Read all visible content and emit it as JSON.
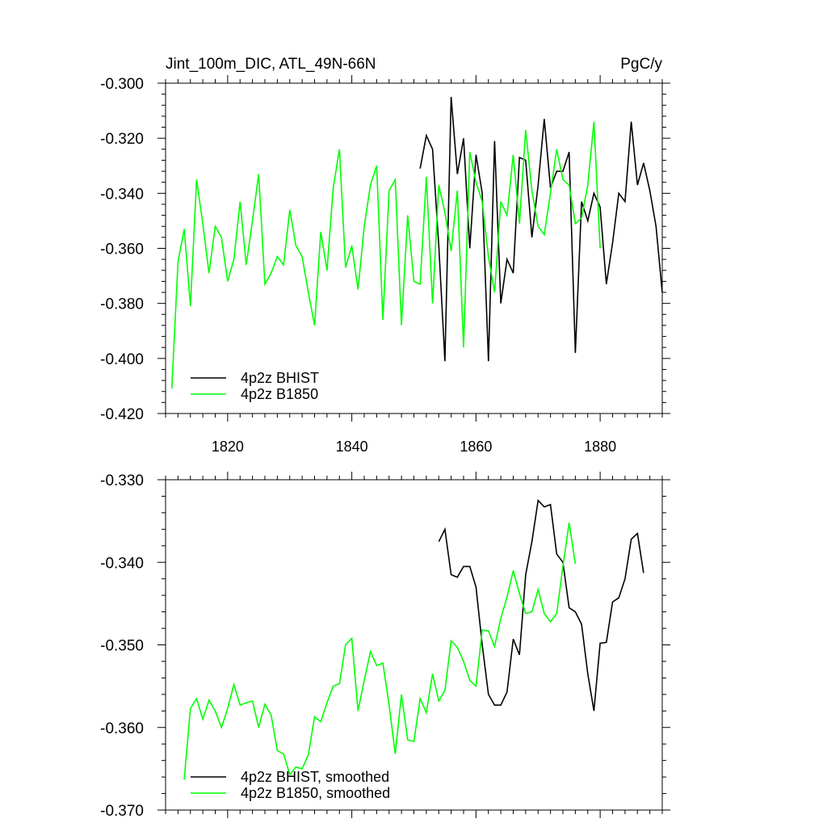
{
  "chart_data": [
    {
      "type": "line",
      "title": "Jint_100m_DIC, ATL_49N-66N",
      "units": "PgC/y",
      "xlabel": "",
      "ylabel": "",
      "xlim": [
        1810,
        1890
      ],
      "ylim": [
        -0.42,
        -0.3
      ],
      "xticks": [
        1820,
        1840,
        1860,
        1880
      ],
      "yticks": [
        -0.42,
        -0.4,
        -0.38,
        -0.36,
        -0.34,
        -0.32,
        -0.3
      ],
      "ytick_labels": [
        "-0.420",
        "-0.400",
        "-0.380",
        "-0.360",
        "-0.340",
        "-0.320",
        "-0.300"
      ],
      "legend": "bottom-left",
      "series": [
        {
          "name": "4p2z BHIST",
          "color": "#000000",
          "x0": 1851,
          "values": [
            -0.331,
            -0.319,
            -0.324,
            -0.359,
            -0.401,
            -0.305,
            -0.333,
            -0.32,
            -0.36,
            -0.326,
            -0.34,
            -0.401,
            -0.321,
            -0.38,
            -0.364,
            -0.369,
            -0.327,
            -0.328,
            -0.356,
            -0.337,
            -0.313,
            -0.338,
            -0.332,
            -0.332,
            -0.325,
            -0.398,
            -0.343,
            -0.35,
            -0.34,
            -0.345,
            -0.373,
            -0.358,
            -0.34,
            -0.343,
            -0.314,
            -0.337,
            -0.329,
            -0.339,
            -0.352,
            -0.376
          ]
        },
        {
          "name": "4p2z B1850",
          "color": "#00ff00",
          "x0": 1811,
          "values": [
            -0.411,
            -0.365,
            -0.353,
            -0.381,
            -0.335,
            -0.351,
            -0.369,
            -0.352,
            -0.356,
            -0.372,
            -0.364,
            -0.343,
            -0.366,
            -0.35,
            -0.333,
            -0.373,
            -0.369,
            -0.363,
            -0.366,
            -0.346,
            -0.359,
            -0.363,
            -0.376,
            -0.388,
            -0.354,
            -0.368,
            -0.338,
            -0.324,
            -0.367,
            -0.359,
            -0.375,
            -0.352,
            -0.337,
            -0.33,
            -0.386,
            -0.339,
            -0.335,
            -0.388,
            -0.348,
            -0.372,
            -0.373,
            -0.334,
            -0.38,
            -0.337,
            -0.347,
            -0.361,
            -0.339,
            -0.396,
            -0.325,
            -0.336,
            -0.343,
            -0.363,
            -0.376,
            -0.343,
            -0.348,
            -0.326,
            -0.351,
            -0.317,
            -0.339,
            -0.352,
            -0.355,
            -0.34,
            -0.324,
            -0.335,
            -0.337,
            -0.351,
            -0.349,
            -0.337,
            -0.314,
            -0.36
          ]
        }
      ]
    },
    {
      "type": "line",
      "title": "",
      "xlabel": "",
      "ylabel": "",
      "xlim": [
        1810,
        1890
      ],
      "ylim": [
        -0.37,
        -0.33
      ],
      "xticks": [
        1820,
        1840,
        1860,
        1880
      ],
      "yticks": [
        -0.37,
        -0.36,
        -0.35,
        -0.34,
        -0.33
      ],
      "ytick_labels": [
        "-0.370",
        "-0.360",
        "-0.350",
        "-0.340",
        "-0.330"
      ],
      "legend": "bottom-left",
      "series": [
        {
          "name": "4p2z BHIST, smoothed",
          "color": "#000000",
          "x0": 1854,
          "values": [
            -0.3375,
            -0.336,
            -0.3415,
            -0.3418,
            -0.3405,
            -0.3405,
            -0.343,
            -0.35,
            -0.356,
            -0.3573,
            -0.3573,
            -0.3557,
            -0.3493,
            -0.3512,
            -0.3415,
            -0.3375,
            -0.3325,
            -0.3333,
            -0.333,
            -0.339,
            -0.34,
            -0.3455,
            -0.346,
            -0.3475,
            -0.3535,
            -0.358,
            -0.3498,
            -0.3497,
            -0.3448,
            -0.3443,
            -0.342,
            -0.3372,
            -0.3365,
            -0.3413
          ]
        },
        {
          "name": "4p2z B1850, smoothed",
          "color": "#00ff00",
          "x0": 1813,
          "values": [
            -0.3663,
            -0.3577,
            -0.3565,
            -0.359,
            -0.3567,
            -0.358,
            -0.36,
            -0.3577,
            -0.3548,
            -0.3573,
            -0.357,
            -0.3568,
            -0.36,
            -0.3572,
            -0.3585,
            -0.3628,
            -0.3632,
            -0.3657,
            -0.3648,
            -0.365,
            -0.3633,
            -0.3587,
            -0.3593,
            -0.357,
            -0.355,
            -0.3547,
            -0.35,
            -0.3492,
            -0.358,
            -0.3543,
            -0.3508,
            -0.3525,
            -0.3522,
            -0.3573,
            -0.3632,
            -0.356,
            -0.3615,
            -0.3617,
            -0.3565,
            -0.3582,
            -0.3535,
            -0.3568,
            -0.3555,
            -0.3495,
            -0.3503,
            -0.352,
            -0.3543,
            -0.355,
            -0.3482,
            -0.3483,
            -0.3502,
            -0.3468,
            -0.3442,
            -0.341,
            -0.3438,
            -0.3462,
            -0.346,
            -0.3433,
            -0.3462,
            -0.3472,
            -0.3462,
            -0.3405,
            -0.3352,
            -0.3402
          ]
        }
      ]
    }
  ]
}
